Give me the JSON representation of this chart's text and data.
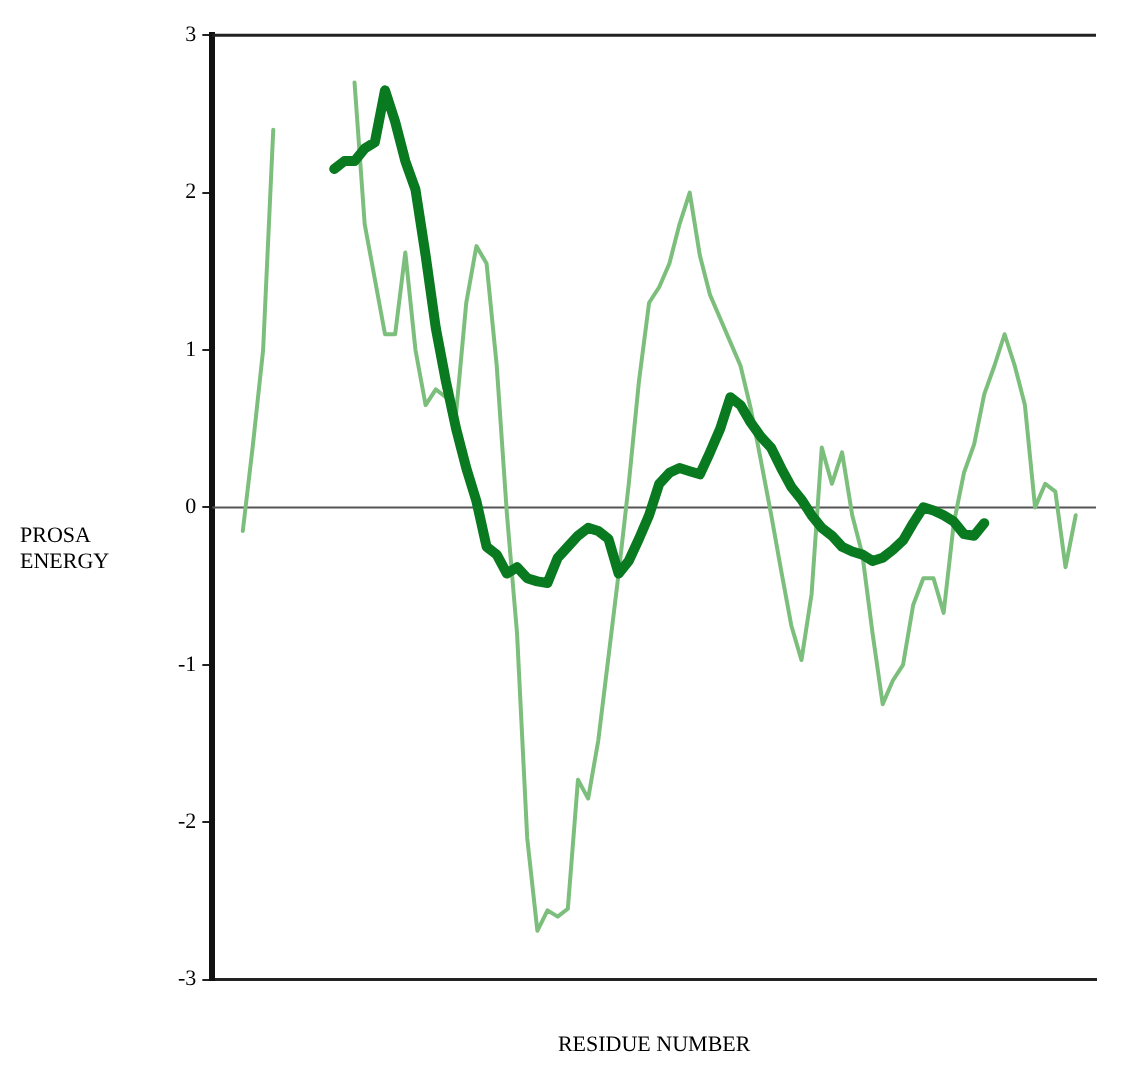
{
  "chart_data": {
    "type": "line",
    "xlabel": "RESIDUE NUMBER",
    "ylabel": "PROSA ENERGY",
    "categories": [
      null,
      null,
      null,
      null,
      null,
      null,
      null,
      null,
      null,
      null,
      null,
      null,
      null,
      null,
      null,
      null,
      null,
      null,
      null,
      null,
      null,
      null,
      null,
      null,
      null,
      null,
      null,
      null,
      null,
      null,
      null,
      null,
      null,
      null,
      null,
      null,
      null,
      null,
      null,
      null,
      null,
      null,
      null,
      null,
      null,
      null,
      null,
      null,
      null,
      null,
      null,
      null,
      null,
      null,
      null,
      null,
      null,
      null,
      null,
      null,
      null,
      null,
      null,
      null,
      null,
      null,
      null,
      null,
      null,
      null,
      null,
      null,
      null,
      null,
      null,
      null,
      null,
      null,
      null,
      null,
      null,
      null,
      null,
      null,
      null,
      null,
      null,
      null
    ],
    "series": [
      {
        "color": "#7cbf7c",
        "values": [
          null,
          null,
          null,
          null,
          null,
          null,
          null,
          null,
          null,
          null,
          null,
          null,
          null,
          null,
          2.7,
          1.8,
          1.45,
          1.1,
          1.1,
          1.62,
          1.0,
          0.65,
          0.75,
          0.7,
          0.6,
          1.3,
          1.66,
          1.55,
          0.9,
          -0.04,
          -0.8,
          -2.1,
          -2.69,
          -2.56,
          -2.6,
          -2.55,
          -1.73,
          -1.85,
          -1.48,
          -0.95,
          -0.42,
          0.15,
          0.8,
          1.3,
          1.4,
          1.55,
          1.8,
          2.0,
          1.6,
          1.35,
          1.2,
          1.05,
          0.9,
          0.63,
          0.3,
          -0.04,
          -0.4,
          -0.75,
          -0.97,
          -0.55,
          0.38,
          0.15,
          0.35,
          -0.05,
          -0.3,
          -0.8,
          -1.25,
          -1.1,
          -1.0,
          -0.62,
          -0.45,
          -0.45,
          -0.67,
          -0.1,
          0.22,
          0.4,
          0.72,
          0.9,
          1.1,
          0.9,
          0.65,
          0.0,
          0.15,
          0.1,
          -0.38,
          -0.05,
          null,
          null
        ]
      },
      {
        "color": "#0a7a20",
        "values": [
          null,
          null,
          null,
          null,
          null,
          null,
          null,
          null,
          null,
          null,
          null,
          null,
          2.15,
          2.2,
          2.2,
          2.28,
          2.32,
          2.65,
          2.45,
          2.2,
          2.02,
          1.6,
          1.14,
          0.8,
          0.5,
          0.25,
          0.04,
          -0.25,
          -0.3,
          -0.42,
          -0.38,
          -0.45,
          -0.47,
          -0.48,
          -0.32,
          -0.25,
          -0.18,
          -0.13,
          -0.15,
          -0.2,
          -0.42,
          -0.34,
          -0.2,
          -0.05,
          0.15,
          0.22,
          0.25,
          0.23,
          0.21,
          0.35,
          0.5,
          0.7,
          0.65,
          0.54,
          0.45,
          0.38,
          0.25,
          0.13,
          0.05,
          -0.05,
          -0.13,
          -0.18,
          -0.25,
          -0.28,
          -0.3,
          -0.34,
          -0.32,
          -0.27,
          -0.21,
          -0.1,
          0.0,
          -0.02,
          -0.05,
          -0.09,
          -0.17,
          -0.18,
          -0.1,
          null,
          null,
          null,
          null,
          null,
          null,
          null,
          null,
          null,
          null,
          null
        ]
      },
      {
        "color": "#7cbf7c",
        "values": [
          null,
          null,
          null,
          -0.15,
          0.4,
          1.0,
          2.4,
          null,
          null,
          null,
          null,
          null,
          null,
          null,
          null,
          null,
          null,
          null,
          null,
          null,
          null,
          null,
          null,
          null,
          null,
          null,
          null,
          null,
          null,
          null,
          null,
          null,
          null,
          null,
          null,
          null,
          null,
          null,
          null,
          null,
          null,
          null,
          null,
          null,
          null,
          null,
          null,
          null,
          null,
          null,
          null,
          null,
          null,
          null,
          null,
          null,
          null,
          null,
          null,
          null,
          null,
          null,
          null,
          null,
          null,
          null,
          null,
          null,
          null,
          null,
          null,
          null,
          null,
          null,
          null,
          null,
          null,
          null,
          null,
          null,
          null,
          null,
          null,
          null,
          null,
          null,
          null,
          null
        ]
      }
    ],
    "ylim": [
      -3,
      3
    ],
    "yticks": [
      -3,
      -2,
      -1,
      0,
      1,
      2,
      3
    ],
    "grid": false,
    "legend": false,
    "tick_labels": "y",
    "marker": "none",
    "line_style": "solid",
    "ref_lines": [
      {
        "axis": "y",
        "value": 0,
        "color": "#555555"
      }
    ]
  }
}
